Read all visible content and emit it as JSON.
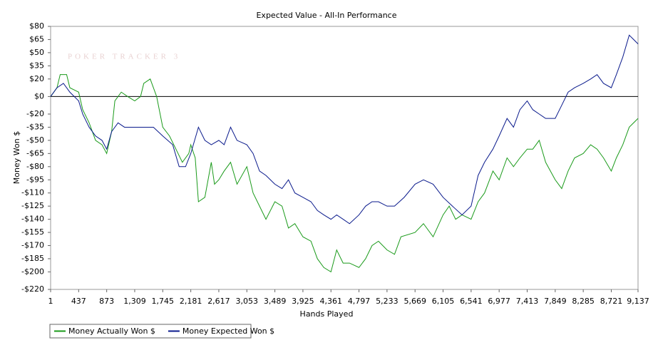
{
  "chart_data": {
    "type": "line",
    "title": "Expected Value - All-In Performance",
    "watermark": "POKER TRACKER 3",
    "x_label": "Hands Played",
    "y_label": "Money Won $",
    "xlim": [
      1,
      9137
    ],
    "ylim": [
      -220,
      80
    ],
    "zero_line": true,
    "xticks": [
      1,
      437,
      873,
      {
        "value": 1309,
        "label": "1,309"
      },
      {
        "value": 1745,
        "label": "1,745"
      },
      {
        "value": 2181,
        "label": "2,181"
      },
      {
        "value": 2617,
        "label": "2,617"
      },
      {
        "value": 3053,
        "label": "3,053"
      },
      {
        "value": 3489,
        "label": "3,489"
      },
      {
        "value": 3925,
        "label": "3,925"
      },
      {
        "value": 4361,
        "label": "4,361"
      },
      {
        "value": 4797,
        "label": "4,797"
      },
      {
        "value": 5233,
        "label": "5,233"
      },
      {
        "value": 5669,
        "label": "5,669"
      },
      {
        "value": 6105,
        "label": "6,105"
      },
      {
        "value": 6541,
        "label": "6,541"
      },
      {
        "value": 6977,
        "label": "6,977"
      },
      {
        "value": 7413,
        "label": "7,413"
      },
      {
        "value": 7849,
        "label": "7,849"
      },
      {
        "value": 8285,
        "label": "8,285"
      },
      {
        "value": 8721,
        "label": "8,721"
      },
      {
        "value": 9137,
        "label": "9,137"
      }
    ],
    "yticks": [
      {
        "value": 80,
        "label": "$80"
      },
      {
        "value": 65,
        "label": "$65"
      },
      {
        "value": 50,
        "label": "$50"
      },
      {
        "value": 35,
        "label": "$35"
      },
      {
        "value": 20,
        "label": "$20"
      },
      {
        "value": 0,
        "label": "$0"
      },
      {
        "value": -20,
        "label": "-$20"
      },
      {
        "value": -35,
        "label": "-$35"
      },
      {
        "value": -50,
        "label": "-$50"
      },
      {
        "value": -65,
        "label": "-$65"
      },
      {
        "value": -80,
        "label": "-$80"
      },
      {
        "value": -95,
        "label": "-$95"
      },
      {
        "value": -110,
        "label": "-$110"
      },
      {
        "value": -125,
        "label": "-$125"
      },
      {
        "value": -140,
        "label": "-$140"
      },
      {
        "value": -155,
        "label": "-$155"
      },
      {
        "value": -170,
        "label": "-$170"
      },
      {
        "value": -185,
        "label": "-$185"
      },
      {
        "value": -200,
        "label": "-$200"
      },
      {
        "value": -220,
        "label": "-$220"
      }
    ],
    "series": [
      {
        "name": "Money Actually Won $",
        "color": "#1a9a1a",
        "x": [
          1,
          100,
          150,
          250,
          300,
          437,
          500,
          600,
          700,
          800,
          873,
          950,
          1000,
          1100,
          1200,
          1309,
          1400,
          1450,
          1550,
          1650,
          1745,
          1850,
          1950,
          2050,
          2150,
          2181,
          2250,
          2300,
          2400,
          2500,
          2550,
          2617,
          2700,
          2800,
          2900,
          3053,
          3150,
          3250,
          3350,
          3489,
          3600,
          3700,
          3800,
          3925,
          4050,
          4150,
          4250,
          4361,
          4450,
          4550,
          4650,
          4797,
          4900,
          5000,
          5100,
          5233,
          5350,
          5450,
          5669,
          5800,
          5950,
          6105,
          6200,
          6300,
          6400,
          6541,
          6650,
          6750,
          6880,
          6977,
          7100,
          7200,
          7300,
          7413,
          7500,
          7600,
          7700,
          7849,
          7950,
          8050,
          8150,
          8285,
          8400,
          8500,
          8600,
          8721,
          8800,
          8900,
          9000,
          9137
        ],
        "values": [
          0,
          10,
          25,
          25,
          10,
          5,
          -15,
          -30,
          -50,
          -55,
          -65,
          -40,
          -5,
          5,
          0,
          -5,
          0,
          15,
          20,
          0,
          -35,
          -45,
          -60,
          -75,
          -65,
          -55,
          -70,
          -120,
          -115,
          -75,
          -100,
          -95,
          -85,
          -75,
          -100,
          -80,
          -110,
          -125,
          -140,
          -120,
          -125,
          -150,
          -145,
          -160,
          -165,
          -185,
          -195,
          -200,
          -175,
          -190,
          -190,
          -195,
          -185,
          -170,
          -165,
          -175,
          -180,
          -160,
          -155,
          -145,
          -160,
          -135,
          -125,
          -140,
          -135,
          -140,
          -120,
          -110,
          -85,
          -95,
          -70,
          -80,
          -70,
          -60,
          -60,
          -50,
          -75,
          -95,
          -105,
          -85,
          -70,
          -65,
          -55,
          -60,
          -70,
          -85,
          -70,
          -55,
          -35,
          -25
        ]
      },
      {
        "name": "Money Expected Won $",
        "color": "#0a1a8c",
        "x": [
          1,
          100,
          200,
          300,
          437,
          500,
          600,
          700,
          800,
          873,
          950,
          1050,
          1150,
          1309,
          1450,
          1600,
          1745,
          1900,
          2000,
          2100,
          2181,
          2300,
          2400,
          2500,
          2617,
          2700,
          2800,
          2900,
          3053,
          3150,
          3250,
          3350,
          3489,
          3600,
          3700,
          3800,
          3925,
          4050,
          4150,
          4250,
          4361,
          4450,
          4550,
          4650,
          4797,
          4900,
          5000,
          5100,
          5233,
          5350,
          5500,
          5669,
          5800,
          5950,
          6105,
          6250,
          6400,
          6541,
          6650,
          6750,
          6880,
          6977,
          7100,
          7200,
          7300,
          7413,
          7500,
          7600,
          7700,
          7849,
          7950,
          8050,
          8150,
          8285,
          8400,
          8500,
          8600,
          8721,
          8800,
          8900,
          9000,
          9137
        ],
        "values": [
          0,
          10,
          15,
          5,
          -5,
          -20,
          -35,
          -45,
          -50,
          -60,
          -40,
          -30,
          -35,
          -35,
          -35,
          -35,
          -45,
          -55,
          -80,
          -80,
          -65,
          -35,
          -50,
          -55,
          -50,
          -55,
          -35,
          -50,
          -55,
          -65,
          -85,
          -90,
          -100,
          -105,
          -95,
          -110,
          -115,
          -120,
          -130,
          -135,
          -140,
          -135,
          -140,
          -145,
          -135,
          -125,
          -120,
          -120,
          -125,
          -125,
          -115,
          -100,
          -95,
          -100,
          -115,
          -125,
          -135,
          -125,
          -90,
          -75,
          -60,
          -45,
          -25,
          -35,
          -15,
          -5,
          -15,
          -20,
          -25,
          -25,
          -10,
          5,
          10,
          15,
          20,
          25,
          15,
          10,
          25,
          45,
          70,
          60
        ]
      }
    ]
  }
}
